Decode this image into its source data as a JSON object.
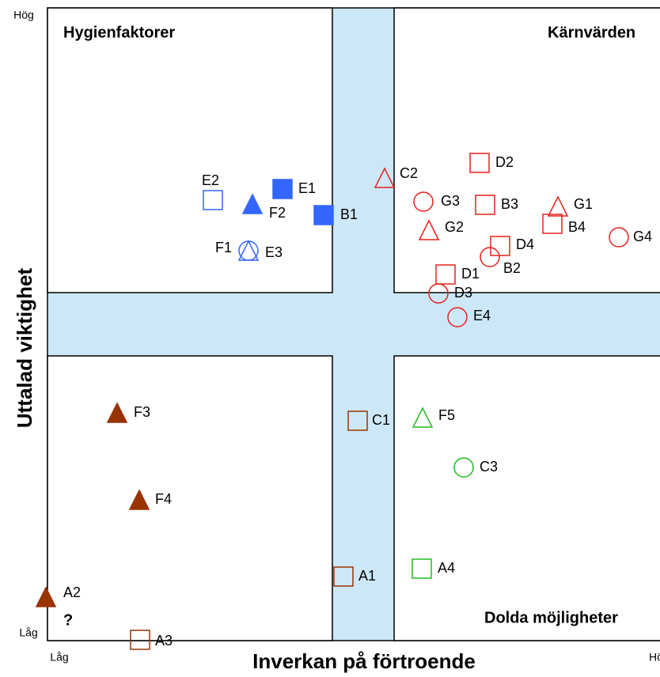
{
  "axes": {
    "y_title": "Uttalad viktighet",
    "x_title": "Inverkan på förtroende",
    "y_high": "Hög",
    "y_low": "Låg",
    "x_low": "Låg",
    "x_high": "Hög"
  },
  "quadrants": {
    "top_left": "Hygienfaktorer",
    "top_right": "Kärnvärden",
    "bottom_right": "Dolda möjligheter",
    "bottom_left_note": "?"
  },
  "nodes": [
    {
      "label": "E2",
      "shape": "square",
      "color": "#3366ff",
      "filled": false
    },
    {
      "label": "E1",
      "shape": "square",
      "color": "#3366ff",
      "filled": true
    },
    {
      "label": "F2",
      "shape": "triangle",
      "color": "#3366ff",
      "filled": true
    },
    {
      "label": "B1",
      "shape": "square",
      "color": "#3366ff",
      "filled": true
    },
    {
      "label": "F1",
      "shape": "triangle",
      "color": "#3366ff",
      "filled": false
    },
    {
      "label": "E3",
      "shape": "circle",
      "color": "#3366ff",
      "filled": false
    },
    {
      "label": "C2",
      "shape": "triangle",
      "color": "#e8211a",
      "filled": false
    },
    {
      "label": "D2",
      "shape": "square",
      "color": "#e8211a",
      "filled": false
    },
    {
      "label": "G3",
      "shape": "circle",
      "color": "#e8211a",
      "filled": false
    },
    {
      "label": "B3",
      "shape": "square",
      "color": "#e8211a",
      "filled": false
    },
    {
      "label": "G1",
      "shape": "triangle",
      "color": "#e8211a",
      "filled": false
    },
    {
      "label": "B4",
      "shape": "square",
      "color": "#e8211a",
      "filled": false
    },
    {
      "label": "G2",
      "shape": "triangle",
      "color": "#e8211a",
      "filled": false
    },
    {
      "label": "G4",
      "shape": "circle",
      "color": "#e8211a",
      "filled": false
    },
    {
      "label": "D4",
      "shape": "square",
      "color": "#e8211a",
      "filled": false
    },
    {
      "label": "B2",
      "shape": "circle",
      "color": "#e8211a",
      "filled": false
    },
    {
      "label": "D1",
      "shape": "square",
      "color": "#e8211a",
      "filled": false
    },
    {
      "label": "D3",
      "shape": "circle",
      "color": "#e8211a",
      "filled": false
    },
    {
      "label": "E4",
      "shape": "circle",
      "color": "#e8211a",
      "filled": false
    },
    {
      "label": "F3",
      "shape": "triangle",
      "color": "#993300",
      "filled": true
    },
    {
      "label": "F4",
      "shape": "triangle",
      "color": "#993300",
      "filled": true
    },
    {
      "label": "A2",
      "shape": "triangle",
      "color": "#993300",
      "filled": true
    },
    {
      "label": "A3",
      "shape": "square",
      "color": "#993300",
      "filled": false
    },
    {
      "label": "C1",
      "shape": "square",
      "color": "#993300",
      "filled": false
    },
    {
      "label": "A1",
      "shape": "square",
      "color": "#993300",
      "filled": false
    },
    {
      "label": "F5",
      "shape": "triangle",
      "color": "#22bb22",
      "filled": false
    },
    {
      "label": "C3",
      "shape": "circle",
      "color": "#22bb22",
      "filled": false
    },
    {
      "label": "A4",
      "shape": "square",
      "color": "#22bb22",
      "filled": false
    }
  ]
}
